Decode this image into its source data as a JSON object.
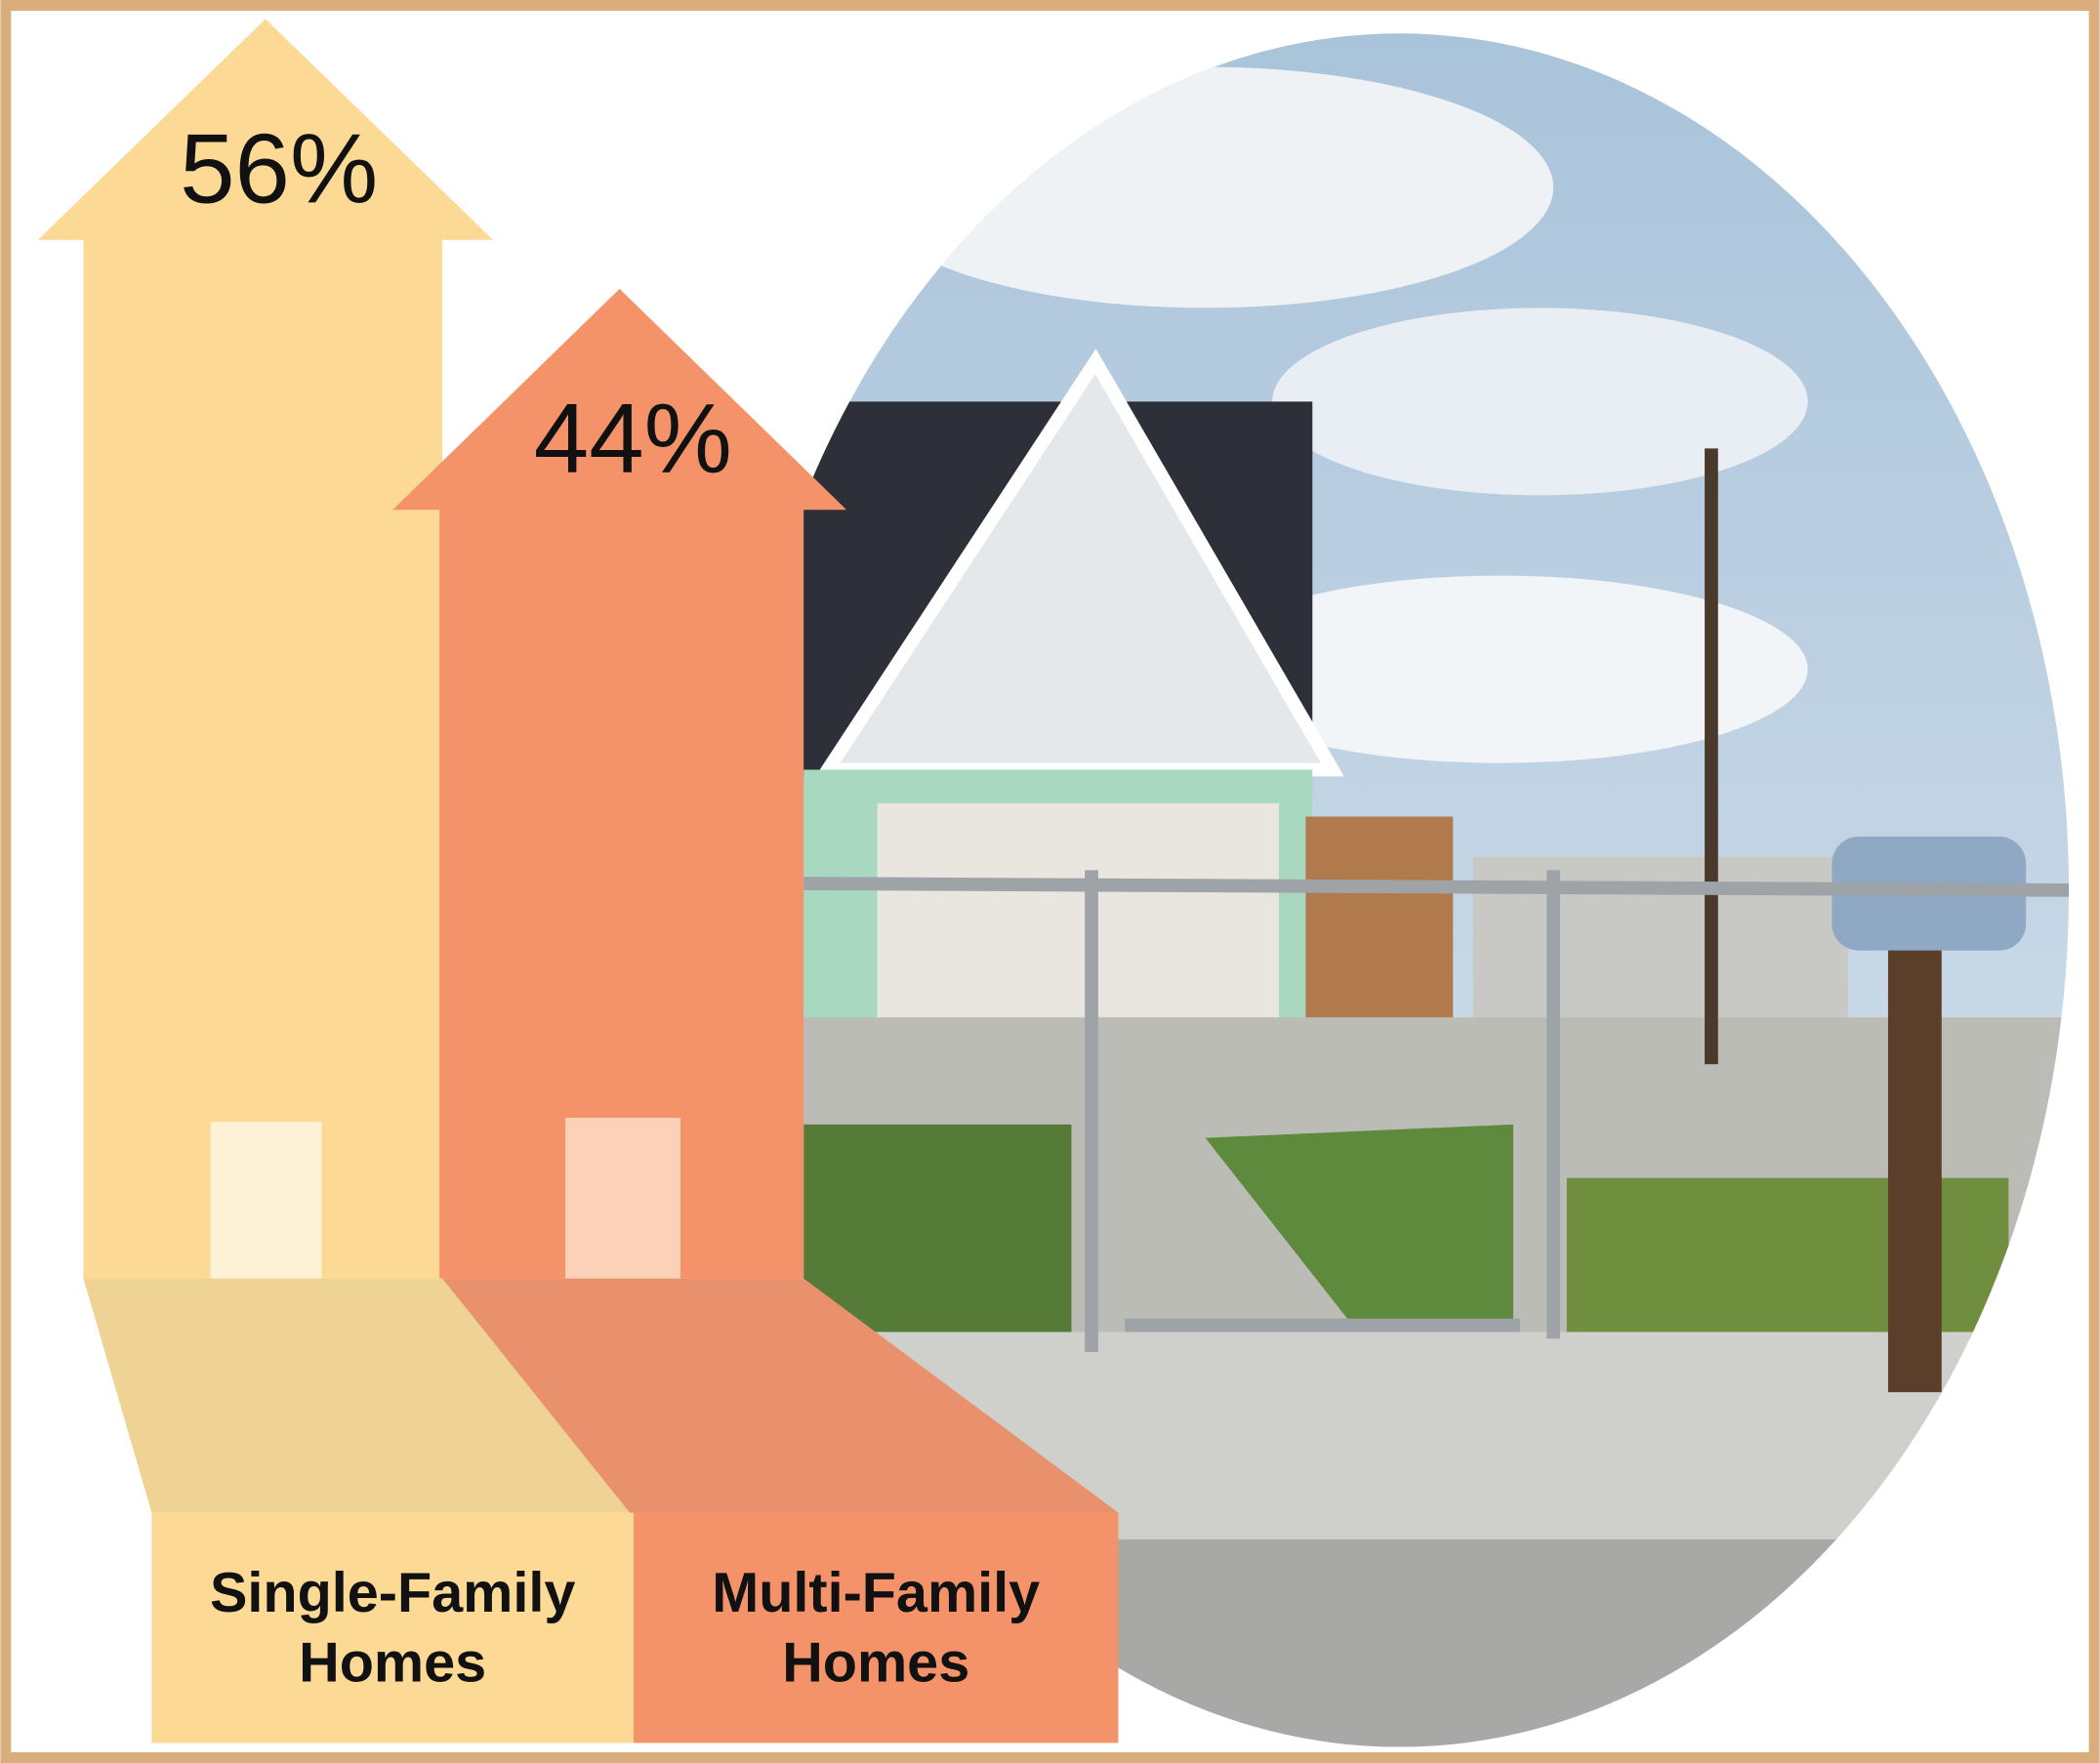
{
  "chart_data": {
    "type": "arrow-bar",
    "categories": [
      "Single-Family Homes",
      "Multi-Family Homes"
    ],
    "values": [
      56,
      44
    ],
    "value_labels": [
      "56%",
      "44%"
    ],
    "colors": [
      "#fcd995",
      "#f4936a"
    ]
  }
}
